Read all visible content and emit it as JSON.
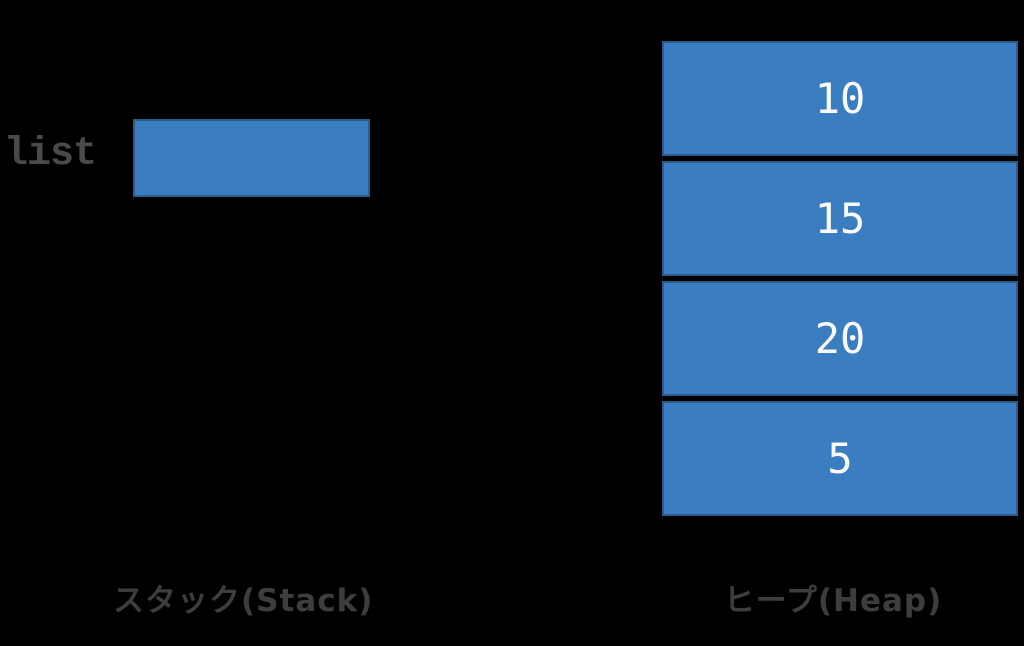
{
  "diagram": {
    "type": "memory-layout",
    "background_color": "#000000",
    "colors": {
      "box_fill": "#3a7ec1",
      "box_border": "#2b5c8a",
      "label_gray": "#3d3d3d",
      "variable_gray": "#4a4a4a",
      "value_text": "#fafafa"
    }
  },
  "stack": {
    "variable_label": "list",
    "region_label": "スタック(Stack)"
  },
  "heap": {
    "region_label": "ヒープ(Heap)",
    "cells": [
      {
        "value": "10"
      },
      {
        "value": "15"
      },
      {
        "value": "20"
      },
      {
        "value": "5"
      }
    ]
  }
}
